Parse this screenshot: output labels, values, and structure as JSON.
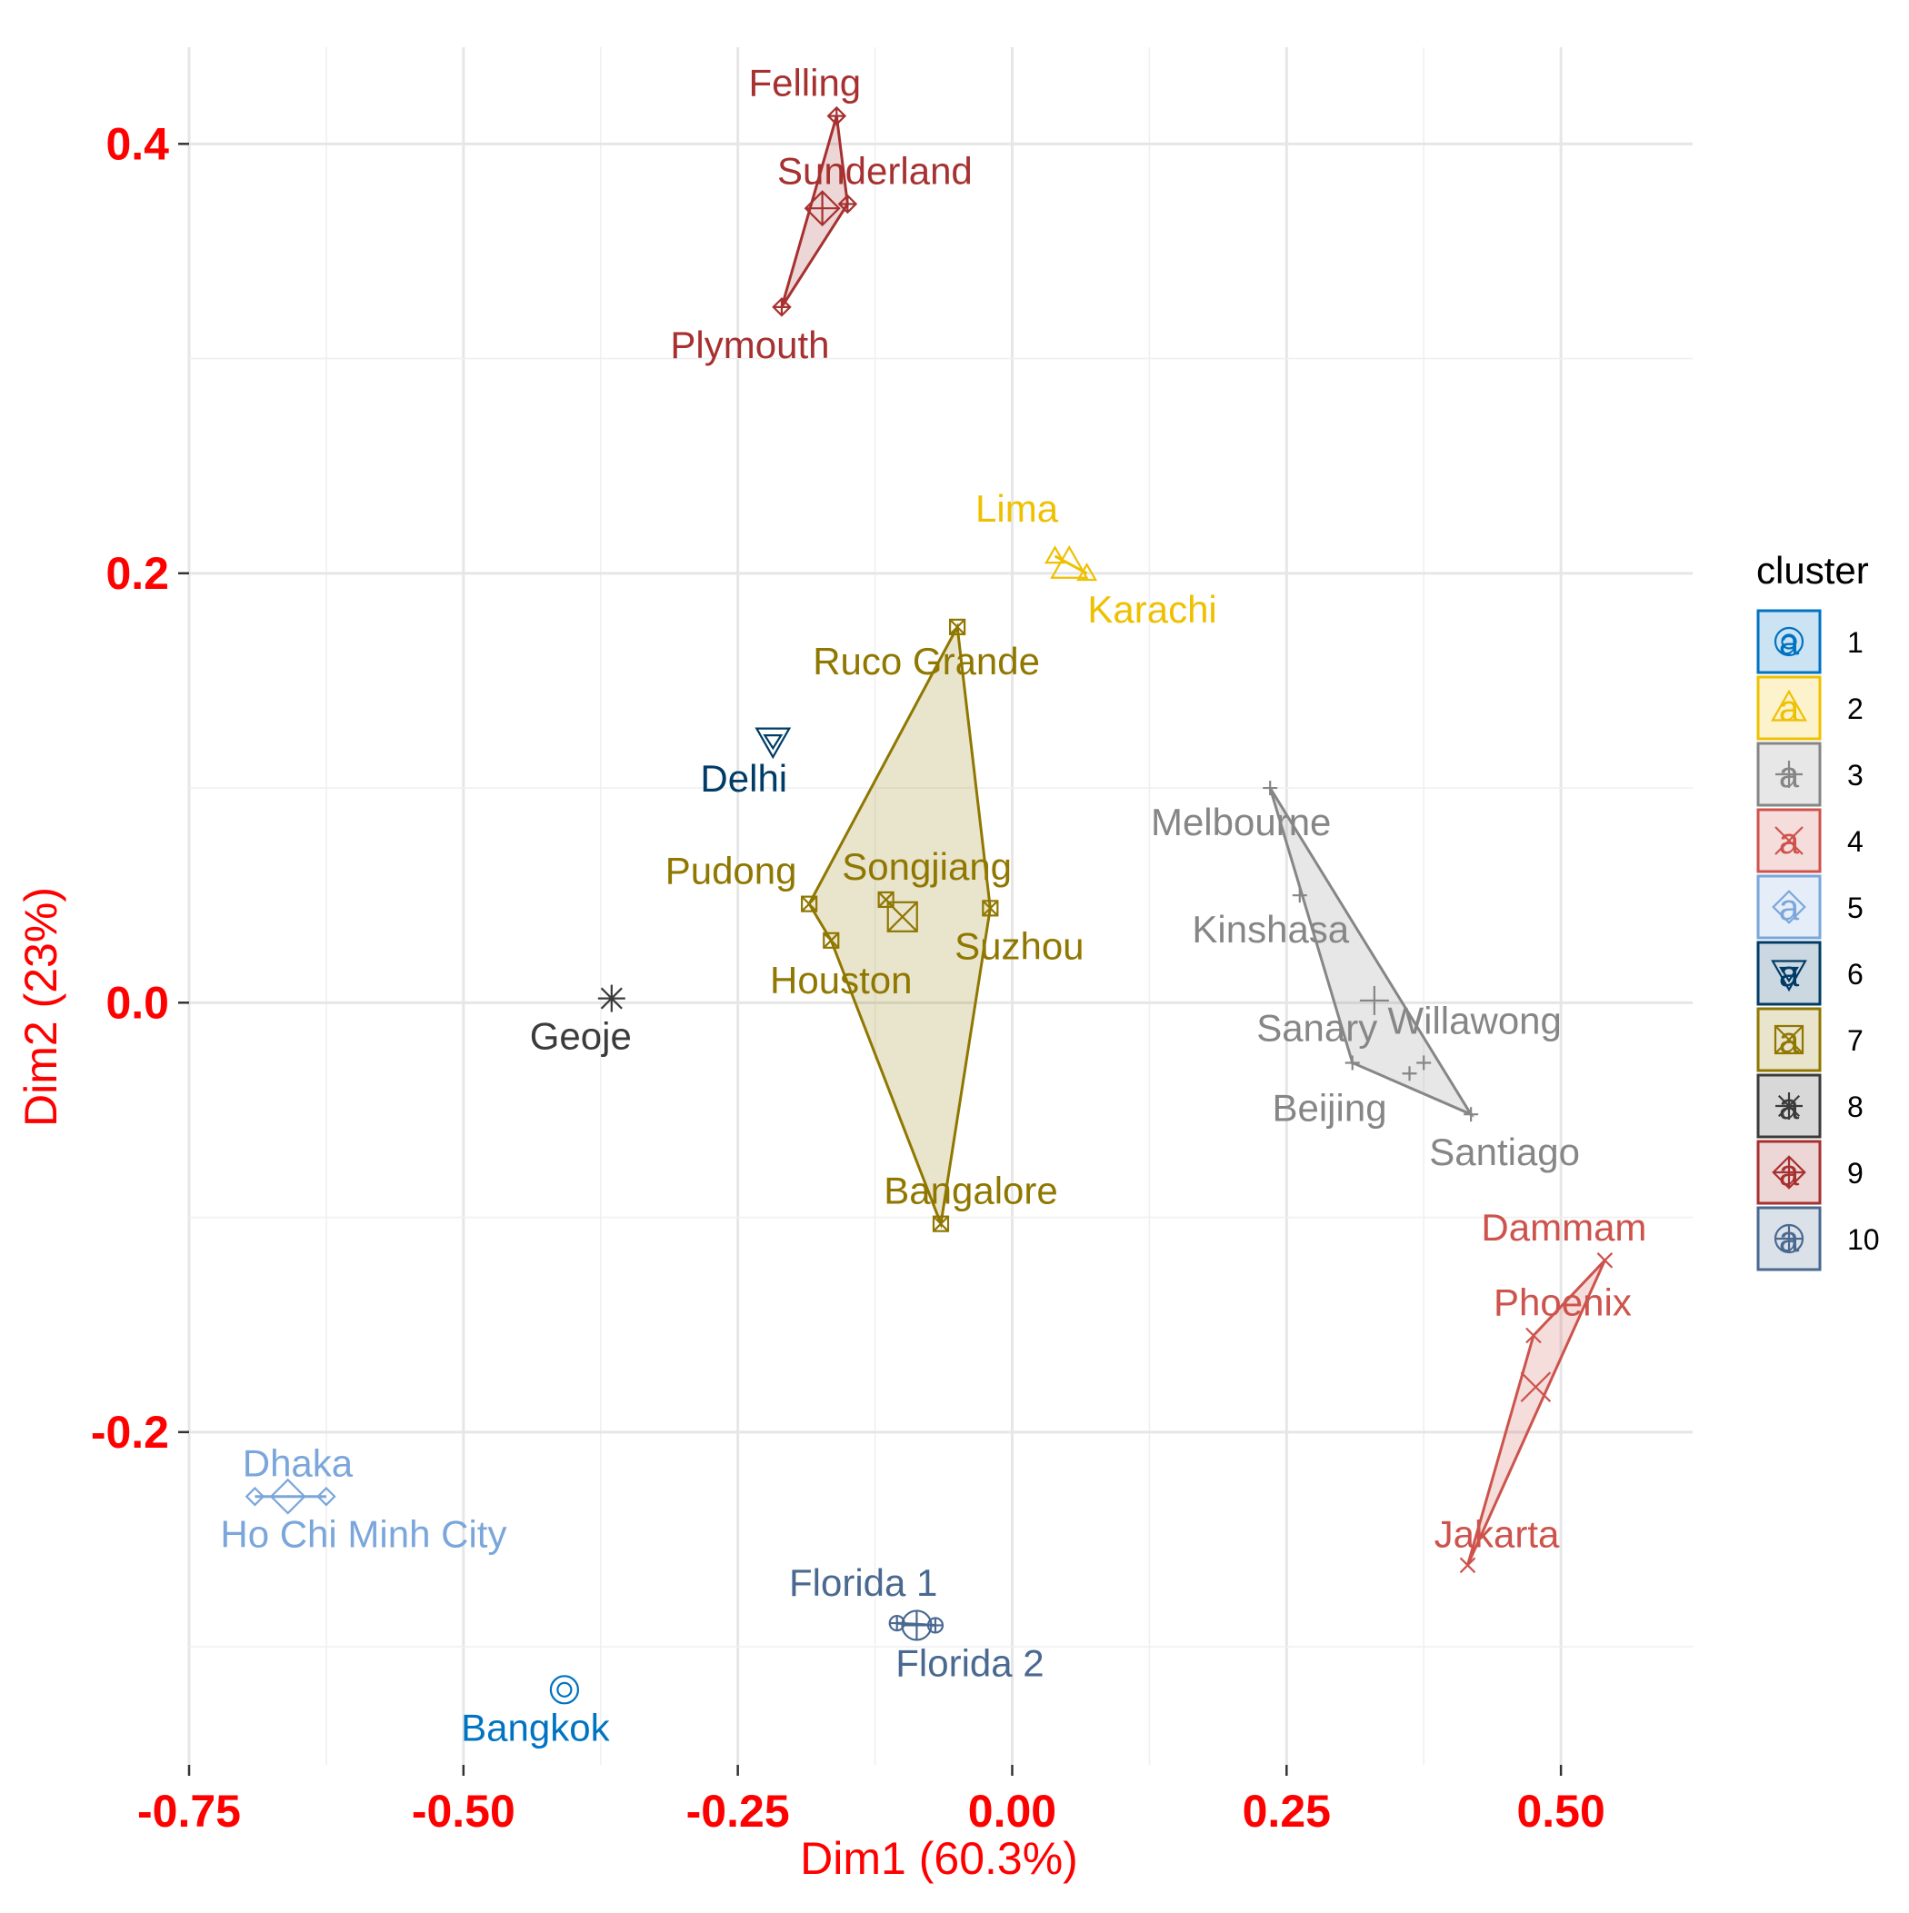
{
  "chart_data": {
    "type": "scatter",
    "title": "",
    "xlabel": "Dim1 (60.3%)",
    "ylabel": "Dim2 (23%)",
    "xlim": [
      -0.75,
      0.62
    ],
    "ylim": [
      -0.355,
      0.445
    ],
    "x_ticks": [
      {
        "value": -0.75,
        "label": "-0.75"
      },
      {
        "value": -0.5,
        "label": "-0.50"
      },
      {
        "value": -0.25,
        "label": "-0.25"
      },
      {
        "value": 0.0,
        "label": "0.00"
      },
      {
        "value": 0.25,
        "label": "0.25"
      },
      {
        "value": 0.5,
        "label": "0.50"
      }
    ],
    "y_ticks": [
      {
        "value": -0.2,
        "label": "-0.2"
      },
      {
        "value": 0.0,
        "label": "0.0"
      },
      {
        "value": 0.2,
        "label": "0.2"
      },
      {
        "value": 0.4,
        "label": "0.4"
      }
    ],
    "axis_label_color": "#FF0000",
    "grid": true,
    "legend": {
      "title": "cluster",
      "position": "right"
    },
    "clusters": [
      {
        "id": "1",
        "color": "#0073C2",
        "shape": "circle-double",
        "points": [
          {
            "name": "Bangkok",
            "x": -0.408,
            "y": -0.32
          }
        ]
      },
      {
        "id": "2",
        "color": "#EFC000",
        "shape": "triangle",
        "points": [
          {
            "name": "Lima",
            "x": 0.039,
            "y": 0.208
          },
          {
            "name": "Karachi",
            "x": 0.068,
            "y": 0.2
          }
        ]
      },
      {
        "id": "3",
        "color": "#868686",
        "shape": "plus",
        "points": [
          {
            "name": "Melbourne",
            "x": 0.235,
            "y": 0.1
          },
          {
            "name": "Kinshasa",
            "x": 0.262,
            "y": 0.05
          },
          {
            "name": "Sanary",
            "x": 0.31,
            "y": -0.028
          },
          {
            "name": "Willawong",
            "x": 0.375,
            "y": -0.028
          },
          {
            "name": "Beijing",
            "x": 0.362,
            "y": -0.033
          },
          {
            "name": "Santiago",
            "x": 0.418,
            "y": -0.052
          }
        ]
      },
      {
        "id": "4",
        "color": "#CD534C",
        "shape": "cross",
        "points": [
          {
            "name": "Dammam",
            "x": 0.54,
            "y": -0.12
          },
          {
            "name": "Phoenix",
            "x": 0.475,
            "y": -0.155
          },
          {
            "name": "Jakarta",
            "x": 0.415,
            "y": -0.262
          }
        ]
      },
      {
        "id": "5",
        "color": "#7AA6DC",
        "shape": "diamond",
        "points": [
          {
            "name": "Dhaka",
            "x": -0.69,
            "y": -0.23
          },
          {
            "name": "Ho Chi Minh City",
            "x": -0.625,
            "y": -0.23
          }
        ]
      },
      {
        "id": "6",
        "color": "#003C67",
        "shape": "triangle-down",
        "points": [
          {
            "name": "Delhi",
            "x": -0.218,
            "y": 0.122
          }
        ]
      },
      {
        "id": "7",
        "color": "#8F7700",
        "shape": "square-cross",
        "points": [
          {
            "name": "Ruco Grande",
            "x": -0.05,
            "y": 0.175
          },
          {
            "name": "Pudong",
            "x": -0.185,
            "y": 0.046
          },
          {
            "name": "Songjiang",
            "x": -0.115,
            "y": 0.048
          },
          {
            "name": "Suzhou",
            "x": -0.02,
            "y": 0.044
          },
          {
            "name": "Houston",
            "x": -0.165,
            "y": 0.029
          },
          {
            "name": "Bangalore",
            "x": -0.065,
            "y": -0.103
          }
        ]
      },
      {
        "id": "8",
        "color": "#3B3B3B",
        "shape": "asterisk",
        "points": [
          {
            "name": "Geoje",
            "x": -0.365,
            "y": 0.002
          }
        ]
      },
      {
        "id": "9",
        "color": "#A73030",
        "shape": "diamond-plus",
        "points": [
          {
            "name": "Felling",
            "x": -0.16,
            "y": 0.413
          },
          {
            "name": "Sunderland",
            "x": -0.15,
            "y": 0.372
          },
          {
            "name": "Plymouth",
            "x": -0.21,
            "y": 0.324
          }
        ]
      },
      {
        "id": "10",
        "color": "#4A6990",
        "shape": "circle-plus",
        "points": [
          {
            "name": "Florida 1",
            "x": -0.105,
            "y": -0.289
          },
          {
            "name": "Florida 2",
            "x": -0.07,
            "y": -0.29
          }
        ]
      }
    ],
    "hulls": [
      {
        "cluster": "3",
        "points": [
          "Melbourne",
          "Santiago",
          "Sanary"
        ]
      },
      {
        "cluster": "4",
        "points": [
          "Dammam",
          "Phoenix",
          "Jakarta"
        ]
      },
      {
        "cluster": "5",
        "points": [
          "Dhaka",
          "Ho Chi Minh City"
        ]
      },
      {
        "cluster": "7",
        "points": [
          "Ruco Grande",
          "Suzhou",
          "Bangalore",
          "Houston",
          "Pudong"
        ]
      },
      {
        "cluster": "9",
        "points": [
          "Felling",
          "Sunderland",
          "Plymouth"
        ]
      },
      {
        "cluster": "10",
        "points": [
          "Florida 1",
          "Florida 2"
        ]
      },
      {
        "cluster": "2",
        "points": [
          "Lima",
          "Karachi"
        ]
      }
    ],
    "centroids": [
      {
        "cluster": "2",
        "x": 0.052,
        "y": 0.204
      },
      {
        "cluster": "3",
        "x": 0.33,
        "y": 0.001
      },
      {
        "cluster": "4",
        "x": 0.477,
        "y": -0.179
      },
      {
        "cluster": "5",
        "x": -0.66,
        "y": -0.23
      },
      {
        "cluster": "7",
        "x": -0.1,
        "y": 0.04
      },
      {
        "cluster": "9",
        "x": -0.173,
        "y": 0.37
      },
      {
        "cluster": "10",
        "x": -0.087,
        "y": -0.29
      }
    ]
  }
}
